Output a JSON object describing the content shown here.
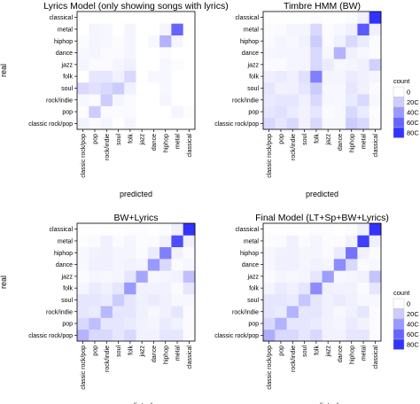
{
  "chart_data": {
    "type": "heatmap",
    "genres": [
      "classic rock/pop",
      "pop",
      "rock/indie",
      "soul",
      "folk",
      "jazz",
      "dance",
      "hiphop",
      "metal",
      "classical"
    ],
    "x_label": "predicted",
    "y_label": "real",
    "legend": {
      "title": "count",
      "ticks": [
        0,
        200,
        400,
        600,
        800
      ],
      "tick_labels": [
        "0",
        "20C",
        "40C",
        "60C",
        "80C"
      ],
      "color_low": "#ffffff",
      "color_high": "#3333ff"
    },
    "panels": [
      {
        "title": "Lyrics Model (only showing songs with lyrics)",
        "matrix": [
          [
            50,
            20,
            40,
            0,
            40,
            0,
            0,
            0,
            0,
            0
          ],
          [
            10,
            200,
            20,
            20,
            20,
            0,
            0,
            0,
            40,
            10
          ],
          [
            30,
            20,
            200,
            40,
            20,
            0,
            0,
            40,
            0,
            0
          ],
          [
            150,
            120,
            150,
            200,
            60,
            0,
            0,
            30,
            0,
            0
          ],
          [
            0,
            100,
            100,
            60,
            150,
            0,
            30,
            30,
            0,
            0
          ],
          [
            40,
            20,
            20,
            40,
            60,
            0,
            0,
            30,
            10,
            0
          ],
          [
            30,
            40,
            20,
            20,
            40,
            0,
            0,
            20,
            0,
            0
          ],
          [
            20,
            40,
            30,
            10,
            40,
            0,
            30,
            300,
            40,
            0
          ],
          [
            0,
            40,
            30,
            0,
            40,
            0,
            0,
            40,
            600,
            0
          ],
          [
            0,
            0,
            0,
            0,
            0,
            0,
            0,
            0,
            0,
            0
          ]
        ]
      },
      {
        "title": "Timbre HMM (BW)",
        "matrix": [
          [
            150,
            100,
            150,
            50,
            150,
            30,
            30,
            200,
            150,
            20
          ],
          [
            100,
            120,
            80,
            50,
            100,
            20,
            30,
            150,
            80,
            10
          ],
          [
            80,
            100,
            100,
            60,
            150,
            30,
            30,
            80,
            150,
            30
          ],
          [
            100,
            50,
            60,
            100,
            200,
            30,
            30,
            100,
            60,
            20
          ],
          [
            60,
            80,
            60,
            120,
            500,
            40,
            40,
            80,
            60,
            40
          ],
          [
            20,
            20,
            40,
            40,
            150,
            80,
            30,
            40,
            60,
            180
          ],
          [
            30,
            40,
            40,
            40,
            150,
            30,
            300,
            60,
            30,
            20
          ],
          [
            20,
            40,
            30,
            50,
            200,
            20,
            60,
            150,
            80,
            20
          ],
          [
            10,
            20,
            40,
            40,
            150,
            10,
            30,
            60,
            650,
            60
          ],
          [
            5,
            5,
            5,
            5,
            10,
            5,
            0,
            10,
            60,
            800
          ]
        ]
      },
      {
        "title": "BW+Lyrics",
        "matrix": [
          [
            300,
            150,
            150,
            100,
            150,
            50,
            50,
            100,
            100,
            20
          ],
          [
            150,
            250,
            100,
            100,
            80,
            50,
            40,
            80,
            50,
            20
          ],
          [
            100,
            80,
            280,
            100,
            100,
            60,
            30,
            60,
            100,
            20
          ],
          [
            100,
            100,
            80,
            200,
            100,
            60,
            80,
            60,
            30,
            30
          ],
          [
            40,
            80,
            60,
            100,
            400,
            60,
            50,
            50,
            20,
            100
          ],
          [
            20,
            40,
            30,
            40,
            100,
            350,
            30,
            40,
            50,
            250
          ],
          [
            30,
            60,
            60,
            40,
            50,
            40,
            400,
            150,
            20,
            30
          ],
          [
            30,
            50,
            60,
            40,
            40,
            20,
            80,
            500,
            50,
            20
          ],
          [
            10,
            20,
            60,
            20,
            40,
            10,
            20,
            50,
            700,
            60
          ],
          [
            5,
            5,
            5,
            5,
            10,
            10,
            0,
            10,
            60,
            850
          ]
        ]
      },
      {
        "title": "Final Model (LT+Sp+BW+Lyrics)",
        "matrix": [
          [
            320,
            150,
            150,
            100,
            150,
            50,
            50,
            100,
            100,
            20
          ],
          [
            150,
            300,
            100,
            100,
            80,
            50,
            40,
            80,
            50,
            20
          ],
          [
            100,
            80,
            300,
            100,
            100,
            60,
            30,
            60,
            100,
            20
          ],
          [
            100,
            100,
            80,
            220,
            100,
            60,
            80,
            60,
            30,
            30
          ],
          [
            40,
            80,
            60,
            100,
            450,
            60,
            50,
            50,
            20,
            100
          ],
          [
            20,
            40,
            30,
            40,
            100,
            380,
            30,
            40,
            50,
            230
          ],
          [
            30,
            60,
            60,
            40,
            50,
            40,
            450,
            150,
            20,
            30
          ],
          [
            30,
            50,
            60,
            40,
            40,
            20,
            80,
            550,
            50,
            20
          ],
          [
            10,
            20,
            60,
            20,
            40,
            10,
            20,
            50,
            750,
            60
          ],
          [
            5,
            5,
            5,
            5,
            10,
            10,
            0,
            10,
            60,
            880
          ]
        ]
      }
    ]
  }
}
